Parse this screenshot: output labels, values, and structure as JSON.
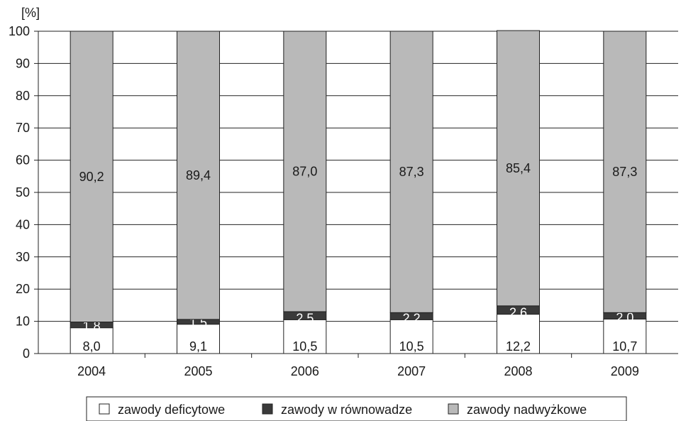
{
  "chart_data": {
    "type": "bar",
    "stacked": true,
    "categories": [
      "2004",
      "2005",
      "2006",
      "2007",
      "2008",
      "2009"
    ],
    "series": [
      {
        "name": "zawody deficytowe",
        "values": [
          8.0,
          9.1,
          10.5,
          10.5,
          12.2,
          10.7
        ],
        "labels": [
          "8,0",
          "9,1",
          "10,5",
          "10,5",
          "12,2",
          "10,7"
        ],
        "color": "#ffffff"
      },
      {
        "name": "zawody w równowadze",
        "values": [
          1.8,
          1.5,
          2.5,
          2.2,
          2.6,
          2.0
        ],
        "labels": [
          "1,8",
          "1,5",
          "2,5",
          "2,2",
          "2,6",
          "2,0"
        ],
        "color": "#3a3a3a"
      },
      {
        "name": "zawody nadwyżkowe",
        "values": [
          90.2,
          89.4,
          87.0,
          87.3,
          85.4,
          87.3
        ],
        "labels": [
          "90,2",
          "89,4",
          "87,0",
          "87,3",
          "85,4",
          "87,3"
        ],
        "color": "#b9b9b9"
      }
    ],
    "ylabel": "[%]",
    "ylim": [
      0,
      100
    ],
    "yticks": [
      0,
      10,
      20,
      30,
      40,
      50,
      60,
      70,
      80,
      90,
      100
    ],
    "grid": true,
    "legend_position": "bottom"
  }
}
